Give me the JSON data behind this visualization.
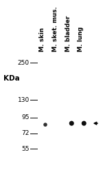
{
  "lane_labels": [
    "M. skin",
    "M. sket. mus.",
    "M. bladder",
    "M. lung"
  ],
  "kda_markers": [
    250,
    130,
    95,
    72,
    55
  ],
  "band_data": [
    {
      "lane": 0,
      "kda": 84,
      "intensity": 0.42,
      "bw": 0.055,
      "bh": 0.022
    },
    {
      "lane": 2,
      "kda": 86,
      "intensity": 0.92,
      "bw": 0.075,
      "bh": 0.03
    },
    {
      "lane": 3,
      "kda": 86,
      "intensity": 0.95,
      "bw": 0.075,
      "bh": 0.03
    }
  ],
  "arrow_kda": 86,
  "fig_bg": "#ffffff",
  "blot_bg": "#f5f4f0",
  "outer_bg": "#ffffff",
  "log_min": 48,
  "log_max": 290,
  "kda_label_fontsize": 7.5,
  "marker_fontsize": 6.5,
  "lane_label_fontsize": 6.2
}
